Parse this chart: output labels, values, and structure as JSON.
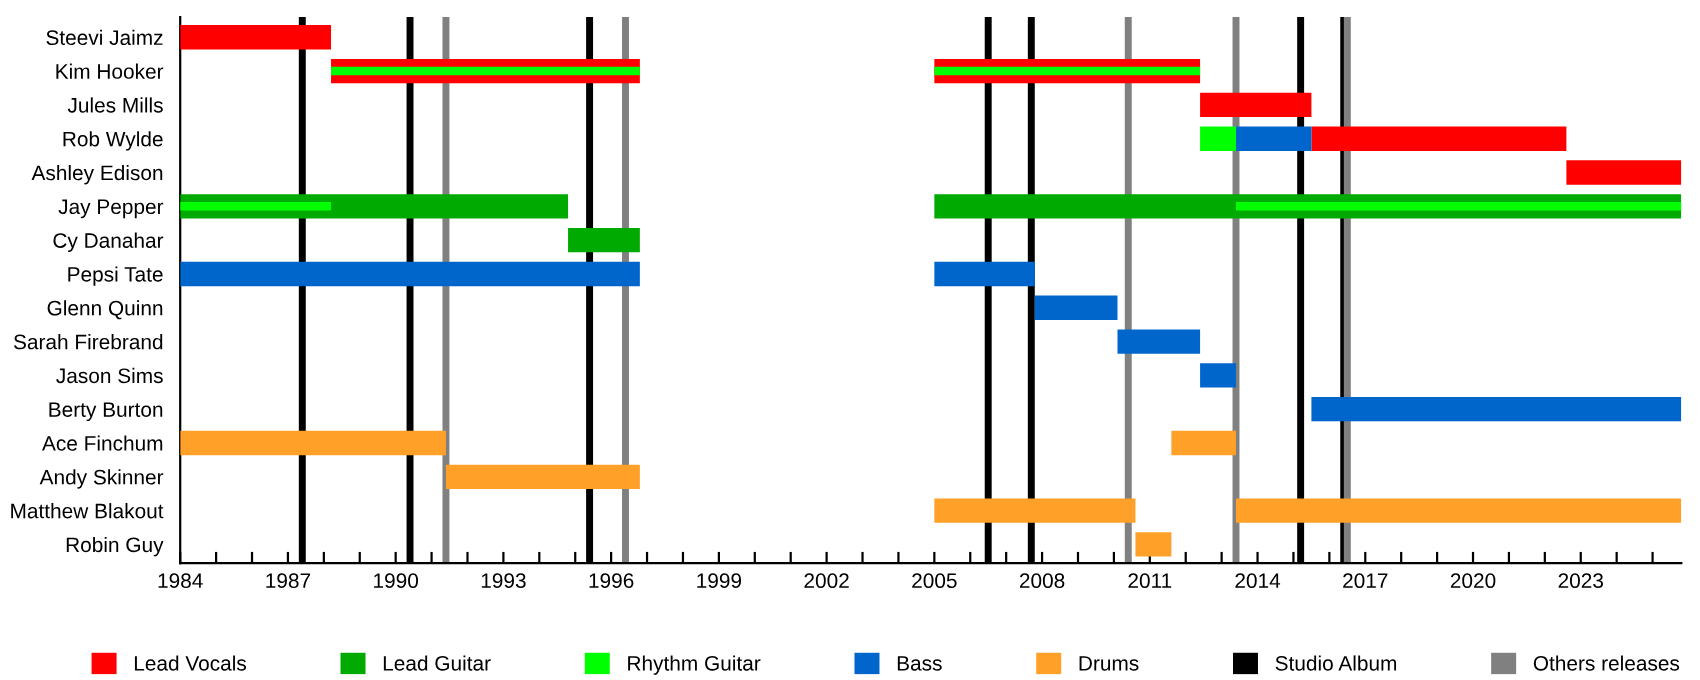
{
  "chart_data": {
    "type": "bar",
    "orientation": "horizontal",
    "categories": [
      "Steevi Jaimz",
      "Kim Hooker",
      "Jules Mills",
      "Rob Wylde",
      "Ashley Edison",
      "Jay Pepper",
      "Cy Danahar",
      "Pepsi Tate",
      "Glenn Quinn",
      "Sarah Firebrand",
      "Jason Sims",
      "Berty Burton",
      "Ace Finchum",
      "Andy Skinner",
      "Matthew Blakout",
      "Robin Guy"
    ],
    "series": [
      {
        "name": "Lead Vocals",
        "color": "#ff0000",
        "base": [
          1984,
          1988.2,
          2012.4,
          2015.5,
          2022.6,
          null,
          null,
          null,
          null,
          null,
          null,
          null,
          null,
          null,
          null,
          null
        ],
        "values": [
          4.2,
          8.6,
          3.1,
          7.1,
          3.2,
          null,
          null,
          null,
          null,
          null,
          null,
          null,
          null,
          null,
          null,
          null
        ]
      },
      {
        "color": "#ff0000",
        "base": [
          null,
          2005.0,
          null,
          null,
          null,
          null,
          null,
          null,
          null,
          null,
          null,
          null,
          null,
          null,
          null,
          null
        ],
        "values": [
          null,
          7.4,
          null,
          null,
          null,
          null,
          null,
          null,
          null,
          null,
          null,
          null,
          null,
          null,
          null,
          null
        ]
      },
      {
        "name": "Lead Guitar",
        "color": "#00aa00",
        "base": [
          null,
          null,
          null,
          null,
          null,
          1984,
          1994.8,
          null,
          null,
          null,
          null,
          null,
          null,
          null,
          null,
          null
        ],
        "values": [
          null,
          null,
          null,
          null,
          null,
          10.8,
          2.0,
          null,
          null,
          null,
          null,
          null,
          null,
          null,
          null,
          null
        ]
      },
      {
        "color": "#00aa00",
        "base": [
          null,
          null,
          null,
          null,
          null,
          2005.0,
          null,
          null,
          null,
          null,
          null,
          null,
          null,
          null,
          null,
          null
        ],
        "values": [
          null,
          null,
          null,
          null,
          null,
          20.8,
          null,
          null,
          null,
          null,
          null,
          null,
          null,
          null,
          null,
          null
        ]
      },
      {
        "name": "Rhythm Guitar",
        "color": "#00ff00",
        "base": [
          null,
          null,
          null,
          2012.4,
          null,
          null,
          null,
          null,
          null,
          null,
          null,
          null,
          null,
          null,
          null,
          null
        ],
        "values": [
          null,
          null,
          null,
          1.0,
          null,
          null,
          null,
          null,
          null,
          null,
          null,
          null,
          null,
          null,
          null,
          null
        ]
      },
      {
        "color": "#00ff00",
        "base": [
          null,
          1988.2,
          null,
          null,
          null,
          1984,
          null,
          null,
          null,
          null,
          null,
          null,
          null,
          null,
          null,
          null
        ],
        "values": [
          null,
          8.6,
          null,
          null,
          null,
          4.2,
          null,
          null,
          null,
          null,
          null,
          null,
          null,
          null,
          null,
          null
        ]
      },
      {
        "color": "#00ff00",
        "base": [
          null,
          2005.0,
          null,
          null,
          null,
          2013.4,
          null,
          null,
          null,
          null,
          null,
          null,
          null,
          null,
          null,
          null
        ],
        "values": [
          null,
          7.4,
          null,
          null,
          null,
          12.4,
          null,
          null,
          null,
          null,
          null,
          null,
          null,
          null,
          null,
          null
        ]
      },
      {
        "name": "Bass",
        "color": "#0066cc",
        "base": [
          null,
          null,
          null,
          2013.4,
          null,
          null,
          null,
          1984,
          2007.8,
          2010.1,
          2012.4,
          2015.5,
          null,
          null,
          null,
          null
        ],
        "values": [
          null,
          null,
          null,
          2.1,
          null,
          null,
          null,
          12.8,
          2.3,
          2.3,
          1.0,
          10.3,
          null,
          null,
          null,
          null
        ]
      },
      {
        "color": "#0066cc",
        "base": [
          null,
          null,
          null,
          null,
          null,
          null,
          null,
          2005.0,
          null,
          null,
          null,
          null,
          null,
          null,
          null,
          null
        ],
        "values": [
          null,
          null,
          null,
          null,
          null,
          null,
          null,
          2.8,
          null,
          null,
          null,
          null,
          null,
          null,
          null,
          null
        ]
      },
      {
        "name": "Drums",
        "color": "#ffa028",
        "base": [
          null,
          null,
          null,
          null,
          null,
          null,
          null,
          null,
          null,
          null,
          null,
          null,
          1984,
          1991.4,
          2005.0,
          2010.6
        ],
        "values": [
          null,
          null,
          null,
          null,
          null,
          null,
          null,
          null,
          null,
          null,
          null,
          null,
          7.4,
          5.4,
          5.6,
          1.0
        ]
      },
      {
        "color": "#ffa028",
        "base": [
          null,
          null,
          null,
          null,
          null,
          null,
          null,
          null,
          null,
          null,
          null,
          null,
          2011.6,
          null,
          2013.4,
          null
        ],
        "values": [
          null,
          null,
          null,
          null,
          null,
          null,
          null,
          null,
          null,
          null,
          null,
          null,
          1.8,
          null,
          12.4,
          null
        ]
      }
    ],
    "ref_lines": [
      {
        "axis": "x",
        "value": 1987.4,
        "label": "Studio Album",
        "color": "#000000"
      },
      {
        "axis": "x",
        "value": 1990.4,
        "color": "#000000"
      },
      {
        "axis": "x",
        "value": 1995.4,
        "color": "#000000"
      },
      {
        "axis": "x",
        "value": 2006.5,
        "color": "#000000"
      },
      {
        "axis": "x",
        "value": 2007.7,
        "color": "#000000"
      },
      {
        "axis": "x",
        "value": 2015.2,
        "color": "#000000"
      },
      {
        "axis": "x",
        "value": 2016.4,
        "color": "#000000"
      },
      {
        "axis": "x",
        "value": 1991.4,
        "label": "Others releases",
        "color": "#808080"
      },
      {
        "axis": "x",
        "value": 1996.4,
        "color": "#808080"
      },
      {
        "axis": "x",
        "value": 2010.4,
        "color": "#808080"
      },
      {
        "axis": "x",
        "value": 2013.4,
        "color": "#808080"
      },
      {
        "axis": "x",
        "value": 2016.5,
        "color": "#808080"
      }
    ],
    "xlim": [
      1984,
      2025.8
    ],
    "xticks": [
      1984,
      {
        "value": 1985,
        "label": null
      },
      {
        "value": 1986,
        "label": null
      },
      1987,
      {
        "value": 1988,
        "label": null
      },
      {
        "value": 1989,
        "label": null
      },
      1990,
      {
        "value": 1991,
        "label": null
      },
      {
        "value": 1992,
        "label": null
      },
      1993,
      {
        "value": 1994,
        "label": null
      },
      {
        "value": 1995,
        "label": null
      },
      1996,
      {
        "value": 1997,
        "label": null
      },
      {
        "value": 1998,
        "label": null
      },
      1999,
      {
        "value": 2000,
        "label": null
      },
      {
        "value": 2001,
        "label": null
      },
      2002,
      {
        "value": 2003,
        "label": null
      },
      {
        "value": 2004,
        "label": null
      },
      2005,
      {
        "value": 2006,
        "label": null
      },
      {
        "value": 2007,
        "label": null
      },
      2008,
      {
        "value": 2009,
        "label": null
      },
      {
        "value": 2010,
        "label": null
      },
      2011,
      {
        "value": 2012,
        "label": null
      },
      {
        "value": 2013,
        "label": null
      },
      2014,
      {
        "value": 2015,
        "label": null
      },
      {
        "value": 2016,
        "label": null
      },
      2017,
      {
        "value": 2018,
        "label": null
      },
      {
        "value": 2019,
        "label": null
      },
      2020,
      {
        "value": 2021,
        "label": null
      },
      {
        "value": 2022,
        "label": null
      },
      2023,
      {
        "value": 2024,
        "label": null
      },
      {
        "value": 2025,
        "label": null
      }
    ],
    "grid": false,
    "legend": "bottom"
  }
}
